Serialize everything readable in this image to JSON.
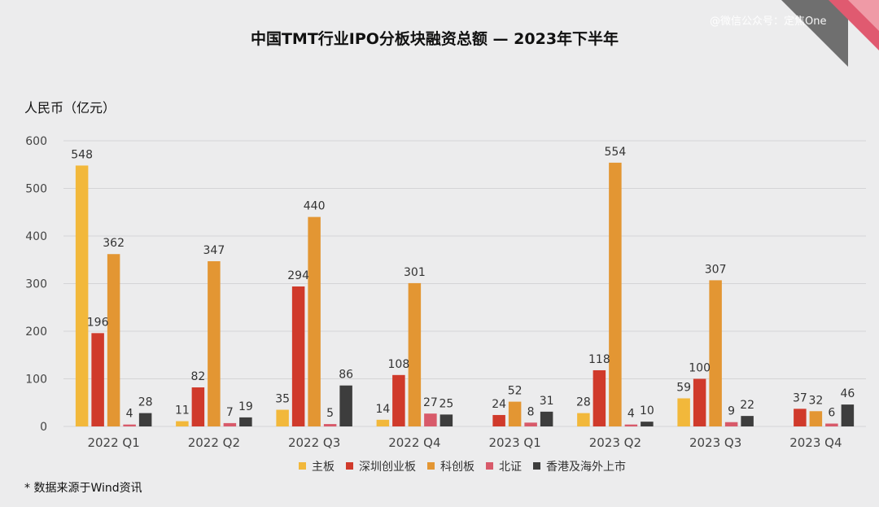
{
  "chart_data": {
    "type": "bar",
    "title": "中国TMT行业IPO分板块融资总额 — 2023年下半年",
    "ylabel": "人民币（亿元）",
    "xlabel": "",
    "ylim": [
      0,
      600
    ],
    "yticks": [
      0,
      100,
      200,
      300,
      400,
      500,
      600
    ],
    "grid": true,
    "legend_position": "bottom",
    "categories": [
      "2022 Q1",
      "2022 Q2",
      "2022 Q3",
      "2022 Q4",
      "2023 Q1",
      "2023 Q2",
      "2023 Q3",
      "2023 Q4"
    ],
    "series": [
      {
        "name": "主板",
        "color": "#f2b83b",
        "values": [
          548,
          11,
          35,
          14,
          null,
          28,
          59,
          null
        ]
      },
      {
        "name": "深圳创业板",
        "color": "#d03a2b",
        "values": [
          196,
          82,
          294,
          108,
          24,
          118,
          100,
          37
        ]
      },
      {
        "name": "科创板",
        "color": "#e39633",
        "values": [
          362,
          347,
          440,
          301,
          52,
          554,
          307,
          32
        ]
      },
      {
        "name": "北证",
        "color": "#d85a6a",
        "values": [
          4,
          7,
          5,
          27,
          8,
          4,
          9,
          6
        ]
      },
      {
        "name": "香港及海外上市",
        "color": "#3d3d3d",
        "values": [
          28,
          19,
          86,
          25,
          31,
          10,
          22,
          46
        ]
      }
    ],
    "footnote": "* 数据来源于Wind资讯"
  },
  "watermark": "@微信公众号：定焦One",
  "colors": {
    "background": "#ececed",
    "accent": "#e05a70",
    "corner_dark": "#6f6f6f"
  }
}
